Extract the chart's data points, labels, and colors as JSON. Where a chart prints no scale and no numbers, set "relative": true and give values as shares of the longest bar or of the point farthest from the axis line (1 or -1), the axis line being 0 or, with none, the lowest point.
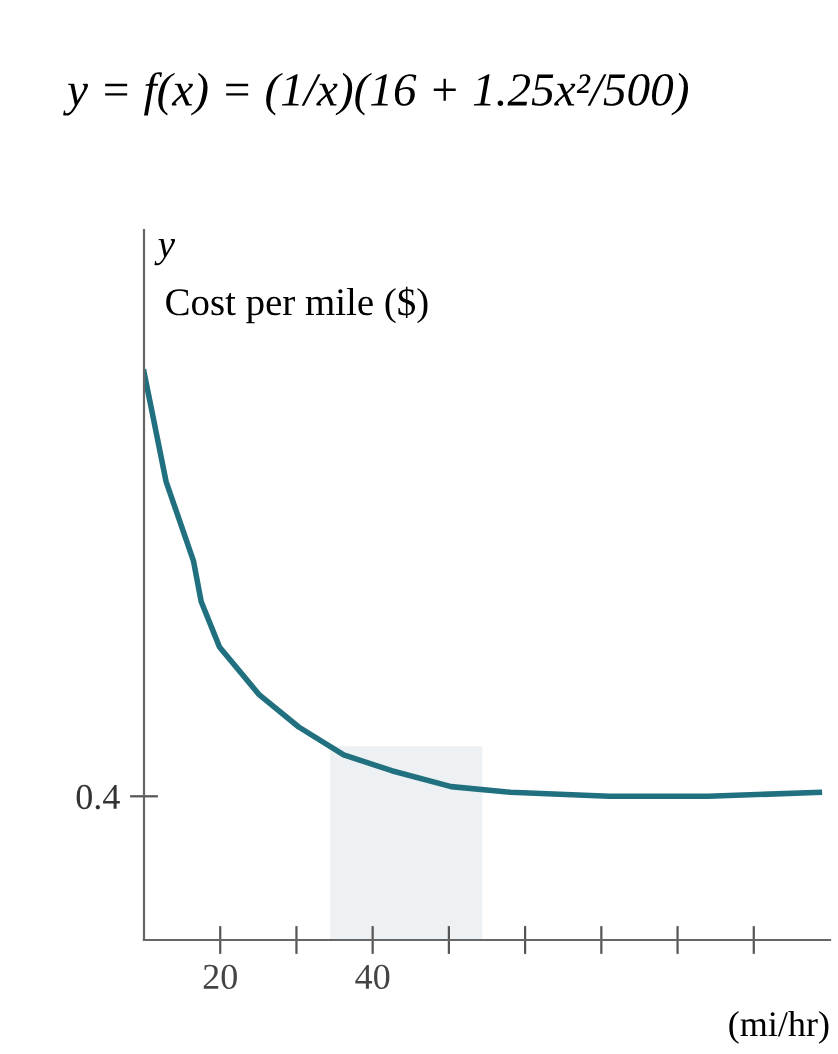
{
  "chart_data": {
    "type": "line",
    "relative": true,
    "title": "y = f(x) = (1/x)(16 + 1.25x²/500)",
    "ylabel": "Cost per mile ($)",
    "xlabel": "(mi/hr)",
    "annotations": [
      "y",
      "0.4"
    ],
    "x": [
      10,
      12.9,
      16.5,
      17.5,
      19.9,
      25.1,
      30.3,
      36.2,
      42.5,
      50.3,
      58.1,
      71.0,
      84.0,
      98.6
    ],
    "series": [
      {
        "color": "#20707f",
        "values": [
          1.0,
          0.807,
          0.667,
          0.596,
          0.516,
          0.432,
          0.375,
          0.326,
          0.298,
          0.27,
          0.26,
          0.253,
          0.253,
          0.26
        ]
      }
    ],
    "xlim": [
      10,
      100
    ],
    "xticks": [
      {
        "value": 20,
        "label": "20"
      },
      {
        "value": 30,
        "label": null
      },
      {
        "value": 40,
        "label": "40"
      },
      {
        "value": 50,
        "label": null
      },
      {
        "value": 60,
        "label": null
      },
      {
        "value": 70,
        "label": null
      },
      {
        "value": 80,
        "label": null
      },
      {
        "value": 90,
        "label": null
      }
    ],
    "bands": [
      {
        "axis": "x",
        "from": 34.4,
        "to": 54.4,
        "color": "#eef1f3"
      }
    ],
    "grid": false,
    "legend": false,
    "marker": "none",
    "line_style": "solid"
  }
}
